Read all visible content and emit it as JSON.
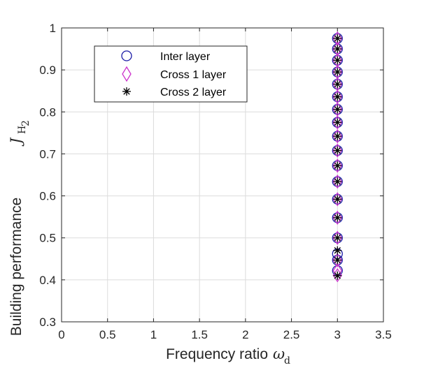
{
  "chart_data": {
    "type": "scatter",
    "xlabel": "Frequency ratio",
    "xlabel_symbol": "ω",
    "xlabel_subscript": "d",
    "ylabel": "Building performance",
    "ylabel_symbol": "J",
    "ylabel_subscript": "H",
    "ylabel_subsubscript": "2",
    "xlim": [
      0,
      3.5
    ],
    "ylim": [
      0.3,
      1
    ],
    "xticks": [
      "0",
      "0.5",
      "1",
      "1.5",
      "2",
      "2.5",
      "3",
      "3.5"
    ],
    "yticks": [
      "0.3",
      "0.4",
      "0.5",
      "0.6",
      "0.7",
      "0.8",
      "0.9",
      "1"
    ],
    "grid": true,
    "legend_position": "top-left",
    "series": [
      {
        "name": "Inter layer",
        "marker": "circle",
        "color": "#1a1aa6",
        "x": [
          3,
          3,
          3,
          3,
          3,
          3,
          3,
          3,
          3,
          3,
          3,
          3,
          3,
          3,
          3,
          3,
          3,
          3
        ],
        "y": [
          0.975,
          0.95,
          0.923,
          0.895,
          0.866,
          0.836,
          0.806,
          0.775,
          0.742,
          0.708,
          0.672,
          0.634,
          0.592,
          0.548,
          0.5,
          0.462,
          0.447,
          0.422
        ]
      },
      {
        "name": "Cross 1 layer",
        "marker": "diamond",
        "color": "#cc33cc",
        "x": [
          3,
          3,
          3,
          3,
          3,
          3,
          3,
          3,
          3,
          3,
          3,
          3,
          3,
          3,
          3,
          3,
          3,
          3
        ],
        "y": [
          0.975,
          0.95,
          0.923,
          0.895,
          0.866,
          0.836,
          0.806,
          0.775,
          0.742,
          0.708,
          0.672,
          0.634,
          0.592,
          0.548,
          0.5,
          0.447,
          0.422,
          0.411
        ]
      },
      {
        "name": "Cross 2 layer",
        "marker": "asterisk",
        "color": "#000000",
        "x": [
          3,
          3,
          3,
          3,
          3,
          3,
          3,
          3,
          3,
          3,
          3,
          3,
          3,
          3,
          3,
          3,
          3,
          3
        ],
        "y": [
          0.975,
          0.95,
          0.923,
          0.895,
          0.866,
          0.836,
          0.806,
          0.775,
          0.742,
          0.708,
          0.672,
          0.634,
          0.592,
          0.548,
          0.5,
          0.47,
          0.447,
          0.41
        ]
      }
    ]
  }
}
